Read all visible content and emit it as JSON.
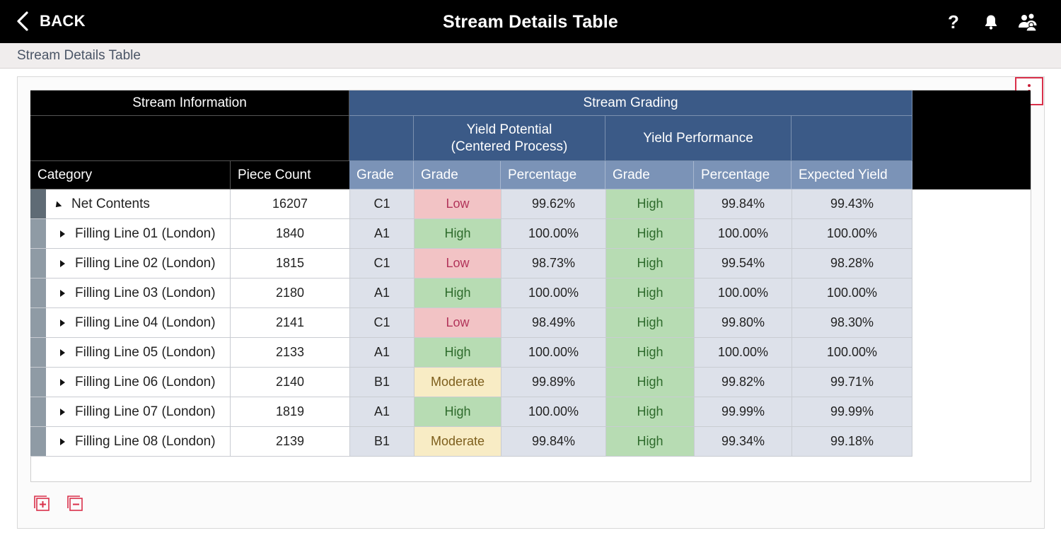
{
  "header": {
    "back_label": "BACK",
    "title": "Stream Details Table",
    "icons": [
      "chevron-left-icon",
      "help-icon",
      "bell-icon",
      "users-icon"
    ]
  },
  "breadcrumb": "Stream Details Table",
  "table": {
    "groups": {
      "stream_information": "Stream Information",
      "stream_grading": "Stream Grading",
      "yield_potential_line1": "Yield Potential",
      "yield_potential_line2": "(Centered Process)",
      "yield_performance": "Yield Performance"
    },
    "columns": [
      "Category",
      "Piece Count",
      "Grade",
      "Grade",
      "Percentage",
      "Grade",
      "Percentage",
      "Expected Yield"
    ],
    "rows": [
      {
        "category": "Net Contents",
        "count": "16207",
        "grade": "C1",
        "yp_grade": "Low",
        "yp_pct": "99.62%",
        "perf_grade": "High",
        "perf_pct": "99.84%",
        "expected": "99.43%"
      },
      {
        "category": "Filling Line 01 (London)",
        "count": "1840",
        "grade": "A1",
        "yp_grade": "High",
        "yp_pct": "100.00%",
        "perf_grade": "High",
        "perf_pct": "100.00%",
        "expected": "100.00%"
      },
      {
        "category": "Filling Line 02 (London)",
        "count": "1815",
        "grade": "C1",
        "yp_grade": "Low",
        "yp_pct": "98.73%",
        "perf_grade": "High",
        "perf_pct": "99.54%",
        "expected": "98.28%"
      },
      {
        "category": "Filling Line 03 (London)",
        "count": "2180",
        "grade": "A1",
        "yp_grade": "High",
        "yp_pct": "100.00%",
        "perf_grade": "High",
        "perf_pct": "100.00%",
        "expected": "100.00%"
      },
      {
        "category": "Filling Line 04 (London)",
        "count": "2141",
        "grade": "C1",
        "yp_grade": "Low",
        "yp_pct": "98.49%",
        "perf_grade": "High",
        "perf_pct": "99.80%",
        "expected": "98.30%"
      },
      {
        "category": "Filling Line 05 (London)",
        "count": "2133",
        "grade": "A1",
        "yp_grade": "High",
        "yp_pct": "100.00%",
        "perf_grade": "High",
        "perf_pct": "100.00%",
        "expected": "100.00%"
      },
      {
        "category": "Filling Line 06 (London)",
        "count": "2140",
        "grade": "B1",
        "yp_grade": "Moderate",
        "yp_pct": "99.89%",
        "perf_grade": "High",
        "perf_pct": "99.82%",
        "expected": "99.71%"
      },
      {
        "category": "Filling Line 07 (London)",
        "count": "1819",
        "grade": "A1",
        "yp_grade": "High",
        "yp_pct": "100.00%",
        "perf_grade": "High",
        "perf_pct": "99.99%",
        "expected": "99.99%"
      },
      {
        "category": "Filling Line 08 (London)",
        "count": "2139",
        "grade": "B1",
        "yp_grade": "Moderate",
        "yp_pct": "99.84%",
        "perf_grade": "High",
        "perf_pct": "99.34%",
        "expected": "99.18%"
      }
    ]
  },
  "colors": {
    "header_black": "#000000",
    "grading_blue": "#3b5a87",
    "subheader_blue": "#7b93b7",
    "low_bg": "#f2c3c5",
    "high_bg": "#b7dcb3",
    "moderate_bg": "#f8ecc5",
    "accent_red": "#d9304a"
  }
}
